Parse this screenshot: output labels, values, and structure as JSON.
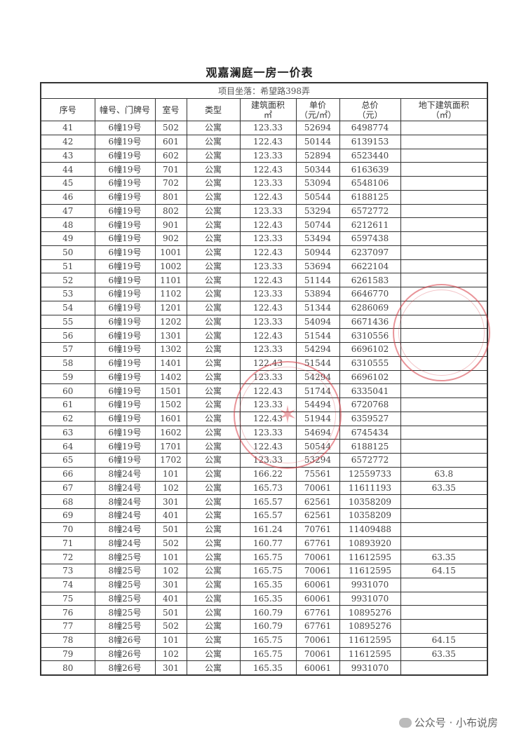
{
  "title": "观嘉澜庭一房一价表",
  "location": "项目坐落：希望路398弄",
  "headers": [
    "序号",
    "幢号、门牌号",
    "室号",
    "类型",
    "建筑面积\n㎡",
    "单价\n（元/㎡）",
    "总价\n（元）",
    "地下建筑面积\n（㎡）"
  ],
  "rows": [
    [
      "41",
      "6幢19号",
      "502",
      "公寓",
      "123.33",
      "52694",
      "6498774",
      ""
    ],
    [
      "42",
      "6幢19号",
      "601",
      "公寓",
      "122.43",
      "50144",
      "6139153",
      ""
    ],
    [
      "43",
      "6幢19号",
      "602",
      "公寓",
      "123.33",
      "52894",
      "6523440",
      ""
    ],
    [
      "44",
      "6幢19号",
      "701",
      "公寓",
      "122.43",
      "50344",
      "6163639",
      ""
    ],
    [
      "45",
      "6幢19号",
      "702",
      "公寓",
      "123.33",
      "53094",
      "6548106",
      ""
    ],
    [
      "46",
      "6幢19号",
      "801",
      "公寓",
      "122.43",
      "50544",
      "6188125",
      ""
    ],
    [
      "47",
      "6幢19号",
      "802",
      "公寓",
      "123.33",
      "53294",
      "6572772",
      ""
    ],
    [
      "48",
      "6幢19号",
      "901",
      "公寓",
      "122.43",
      "50744",
      "6212611",
      ""
    ],
    [
      "49",
      "6幢19号",
      "902",
      "公寓",
      "123.33",
      "53494",
      "6597438",
      ""
    ],
    [
      "50",
      "6幢19号",
      "1001",
      "公寓",
      "122.43",
      "50944",
      "6237097",
      ""
    ],
    [
      "51",
      "6幢19号",
      "1002",
      "公寓",
      "123.33",
      "53694",
      "6622104",
      ""
    ],
    [
      "52",
      "6幢19号",
      "1101",
      "公寓",
      "122.43",
      "51144",
      "6261583",
      ""
    ],
    [
      "53",
      "6幢19号",
      "1102",
      "公寓",
      "123.33",
      "53894",
      "6646770",
      ""
    ],
    [
      "54",
      "6幢19号",
      "1201",
      "公寓",
      "122.43",
      "51344",
      "6286069",
      ""
    ],
    [
      "55",
      "6幢19号",
      "1202",
      "公寓",
      "123.33",
      "54094",
      "6671436",
      ""
    ],
    [
      "56",
      "6幢19号",
      "1301",
      "公寓",
      "122.43",
      "51544",
      "6310556",
      ""
    ],
    [
      "57",
      "6幢19号",
      "1302",
      "公寓",
      "123.33",
      "54294",
      "6696102",
      ""
    ],
    [
      "58",
      "6幢19号",
      "1401",
      "公寓",
      "122.43",
      "51544",
      "6310555",
      ""
    ],
    [
      "59",
      "6幢19号",
      "1402",
      "公寓",
      "123.33",
      "54294",
      "6696102",
      ""
    ],
    [
      "60",
      "6幢19号",
      "1501",
      "公寓",
      "122.43",
      "51744",
      "6335041",
      ""
    ],
    [
      "61",
      "6幢19号",
      "1502",
      "公寓",
      "123.33",
      "54494",
      "6720768",
      ""
    ],
    [
      "62",
      "6幢19号",
      "1601",
      "公寓",
      "122.43",
      "51944",
      "6359527",
      ""
    ],
    [
      "63",
      "6幢19号",
      "1602",
      "公寓",
      "123.33",
      "54694",
      "6745434",
      ""
    ],
    [
      "64",
      "6幢19号",
      "1701",
      "公寓",
      "122.43",
      "50544",
      "6188125",
      ""
    ],
    [
      "65",
      "6幢19号",
      "1702",
      "公寓",
      "123.33",
      "53294",
      "6572772",
      ""
    ],
    [
      "66",
      "8幢24号",
      "101",
      "公寓",
      "166.22",
      "75561",
      "12559733",
      "63.8"
    ],
    [
      "67",
      "8幢24号",
      "102",
      "公寓",
      "165.73",
      "70061",
      "11611193",
      "63.35"
    ],
    [
      "68",
      "8幢24号",
      "301",
      "公寓",
      "165.57",
      "62561",
      "10358209",
      ""
    ],
    [
      "69",
      "8幢24号",
      "401",
      "公寓",
      "165.57",
      "62561",
      "10358209",
      ""
    ],
    [
      "70",
      "8幢24号",
      "501",
      "公寓",
      "161.24",
      "70761",
      "11409488",
      ""
    ],
    [
      "71",
      "8幢24号",
      "502",
      "公寓",
      "160.77",
      "67761",
      "10893920",
      ""
    ],
    [
      "72",
      "8幢25号",
      "101",
      "公寓",
      "165.75",
      "70061",
      "11612595",
      "63.35"
    ],
    [
      "73",
      "8幢25号",
      "102",
      "公寓",
      "165.75",
      "70061",
      "11612595",
      "64.15"
    ],
    [
      "74",
      "8幢25号",
      "301",
      "公寓",
      "165.35",
      "60061",
      "9931070",
      ""
    ],
    [
      "75",
      "8幢25号",
      "401",
      "公寓",
      "165.35",
      "60061",
      "9931070",
      ""
    ],
    [
      "76",
      "8幢25号",
      "501",
      "公寓",
      "160.79",
      "67761",
      "10895276",
      ""
    ],
    [
      "77",
      "8幢25号",
      "502",
      "公寓",
      "160.79",
      "67761",
      "10895276",
      ""
    ],
    [
      "78",
      "8幢26号",
      "101",
      "公寓",
      "165.75",
      "70061",
      "11612595",
      "64.15"
    ],
    [
      "79",
      "8幢26号",
      "102",
      "公寓",
      "165.75",
      "70061",
      "11612595",
      "63.35"
    ],
    [
      "80",
      "8幢26号",
      "301",
      "公寓",
      "165.35",
      "60061",
      "9931070",
      ""
    ]
  ],
  "watermark": "公众号 · 小布说房",
  "colors": {
    "stamp": "#d73c46",
    "text": "#333333"
  }
}
